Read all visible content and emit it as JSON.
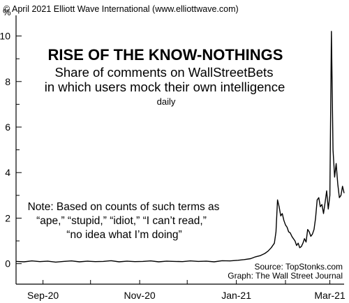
{
  "copyright": "© April 2021 Elliott Wave International (www.elliottwave.com)",
  "y_unit": "%",
  "title": "RISE OF THE KNOW-NOTHINGS",
  "subtitle_lines": [
    "Share of comments on WallStreetBets",
    "in which users mock their own intelligence"
  ],
  "frequency": "daily",
  "note_lines": [
    "Note: Based on counts of such terms as",
    "“ape,” “stupid,” “idiot,” “I can’t read,”",
    "“no idea what I’m doing”"
  ],
  "source": "Source: TopStonks.com",
  "graph_credit": "Graph: The Wall Street Journal",
  "colors": {
    "line": "#000000",
    "axis": "#000000",
    "background": "#ffffff"
  },
  "chart_data": {
    "type": "line",
    "ylim": [
      -0.9,
      10.6
    ],
    "y_ticks": [
      0,
      2,
      4,
      6,
      8,
      10
    ],
    "x_ticks": [
      {
        "label": "Sep-20",
        "date": "2020-09-01"
      },
      {
        "label": "Nov-20",
        "date": "2020-11-01"
      },
      {
        "label": "Jan-21",
        "date": "2021-01-01"
      },
      {
        "label": "Mar-21",
        "date": "2021-03-01"
      }
    ],
    "x_range": [
      "2020-08-15",
      "2021-03-10"
    ],
    "series": [
      {
        "dates": [
          "2020-08-15",
          "2020-08-20",
          "2020-08-25",
          "2020-08-30",
          "2020-09-04",
          "2020-09-09",
          "2020-09-14",
          "2020-09-19",
          "2020-09-24",
          "2020-09-29",
          "2020-10-04",
          "2020-10-09",
          "2020-10-14",
          "2020-10-19",
          "2020-10-24",
          "2020-10-29",
          "2020-11-03",
          "2020-11-08",
          "2020-11-13",
          "2020-11-18",
          "2020-11-23",
          "2020-11-28",
          "2020-12-03",
          "2020-12-08",
          "2020-12-13",
          "2020-12-18",
          "2020-12-23",
          "2020-12-28",
          "2021-01-02",
          "2021-01-06",
          "2021-01-10",
          "2021-01-13",
          "2021-01-16",
          "2021-01-19",
          "2021-01-21",
          "2021-01-23",
          "2021-01-25",
          "2021-01-26",
          "2021-01-27",
          "2021-01-28",
          "2021-01-29",
          "2021-01-30",
          "2021-01-31",
          "2021-02-01",
          "2021-02-02",
          "2021-02-03",
          "2021-02-04",
          "2021-02-05",
          "2021-02-06",
          "2021-02-07",
          "2021-02-08",
          "2021-02-09",
          "2021-02-10",
          "2021-02-11",
          "2021-02-12",
          "2021-02-13",
          "2021-02-14",
          "2021-02-15",
          "2021-02-16",
          "2021-02-17",
          "2021-02-18",
          "2021-02-19",
          "2021-02-20",
          "2021-02-21",
          "2021-02-22",
          "2021-02-23",
          "2021-02-24",
          "2021-02-25",
          "2021-02-26",
          "2021-02-27",
          "2021-02-28",
          "2021-03-01",
          "2021-03-02",
          "2021-03-03",
          "2021-03-04",
          "2021-03-05",
          "2021-03-06",
          "2021-03-07",
          "2021-03-08",
          "2021-03-09",
          "2021-03-10"
        ],
        "values": [
          0.1,
          0.08,
          0.12,
          0.09,
          0.11,
          0.07,
          0.1,
          0.12,
          0.08,
          0.11,
          0.09,
          0.1,
          0.13,
          0.08,
          0.11,
          0.09,
          0.1,
          0.12,
          0.08,
          0.11,
          0.1,
          0.09,
          0.12,
          0.1,
          0.11,
          0.08,
          0.13,
          0.12,
          0.15,
          0.18,
          0.22,
          0.3,
          0.35,
          0.45,
          0.55,
          0.7,
          0.9,
          1.4,
          2.8,
          2.5,
          2.1,
          2.2,
          1.9,
          1.7,
          1.6,
          1.4,
          1.35,
          1.2,
          1.1,
          1.0,
          0.8,
          0.9,
          0.7,
          0.75,
          0.9,
          1.1,
          0.95,
          1.5,
          1.4,
          1.2,
          1.3,
          1.5,
          2.0,
          2.8,
          2.9,
          2.5,
          2.6,
          2.2,
          2.7,
          3.2,
          2.4,
          3.0,
          10.2,
          5.0,
          3.8,
          4.4,
          3.5,
          2.9,
          3.0,
          3.4,
          3.1
        ]
      }
    ]
  }
}
